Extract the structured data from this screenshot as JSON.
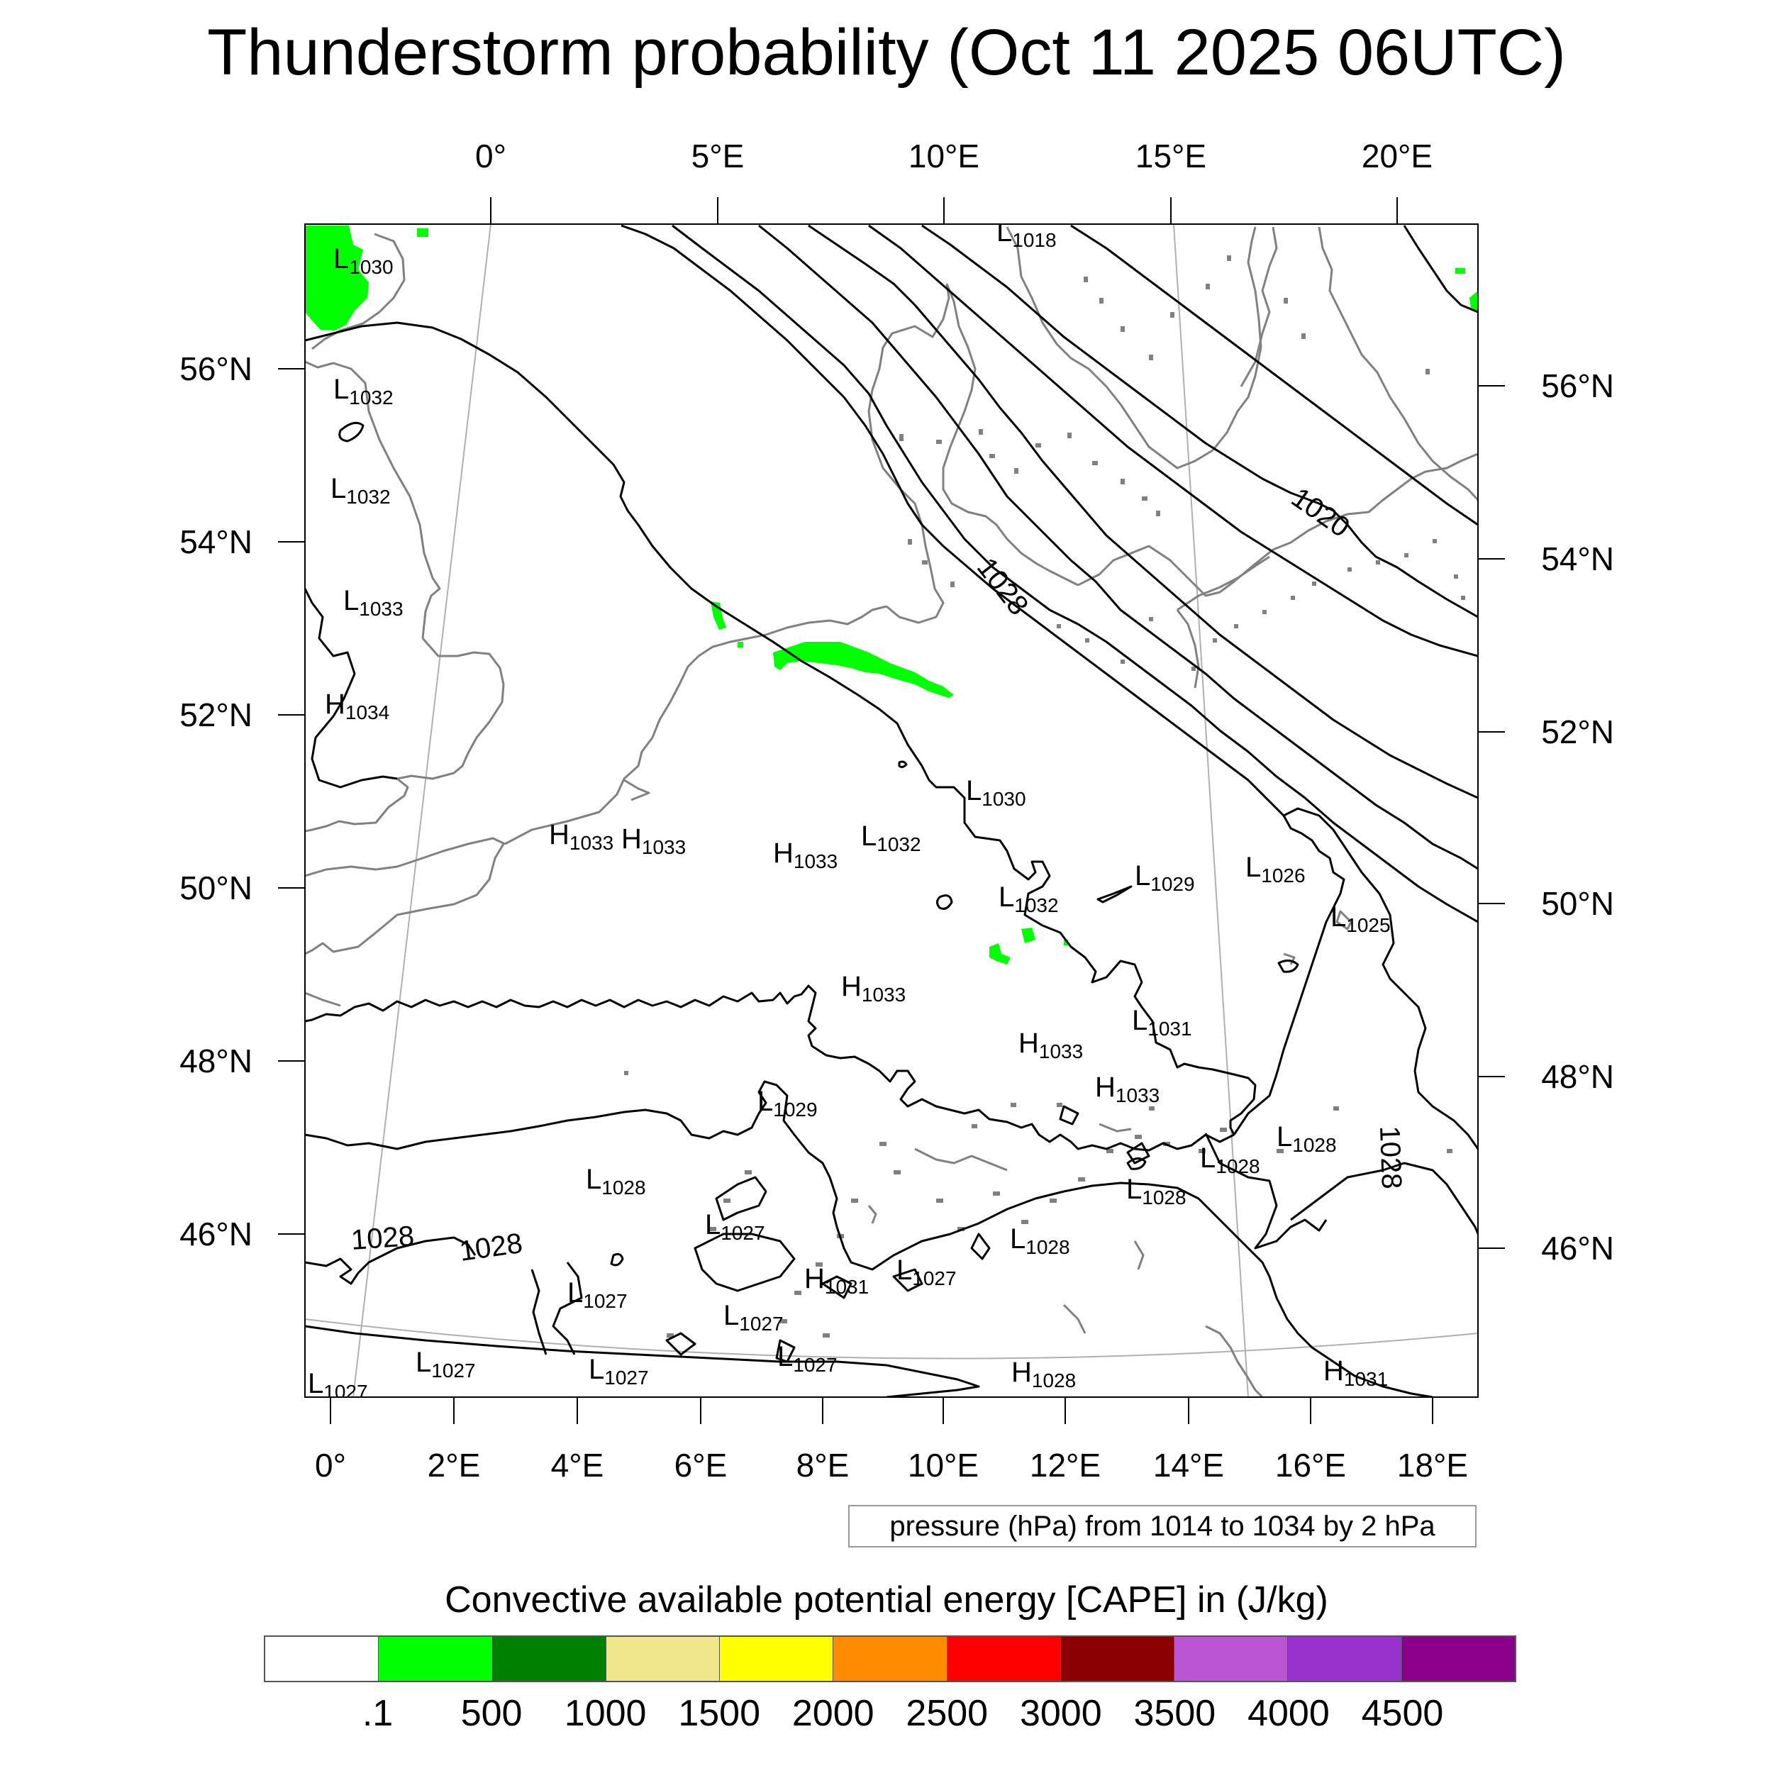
{
  "title": "Thunderstorm probability (Oct 11 2025 06UTC)",
  "map": {
    "top_lon_labels": [
      "0°",
      "5°E",
      "10°E",
      "15°E",
      "20°E"
    ],
    "bottom_lon_labels": [
      "0°",
      "2°E",
      "4°E",
      "6°E",
      "8°E",
      "10°E",
      "12°E",
      "14°E",
      "16°E",
      "18°E"
    ],
    "left_lat_labels": [
      "56°N",
      "54°N",
      "52°N",
      "50°N",
      "48°N",
      "46°N"
    ],
    "right_lat_labels": [
      "56°N",
      "54°N",
      "52°N",
      "50°N",
      "48°N",
      "46°N"
    ],
    "pressure_centers": [
      {
        "type": "L",
        "value": "1018"
      },
      {
        "type": "L",
        "value": "1030"
      },
      {
        "type": "L",
        "value": "1032"
      },
      {
        "type": "L",
        "value": "1032"
      },
      {
        "type": "L",
        "value": "1033"
      },
      {
        "type": "H",
        "value": "1034"
      },
      {
        "type": "H",
        "value": "1033"
      },
      {
        "type": "H",
        "value": "1033"
      },
      {
        "type": "H",
        "value": "1033"
      },
      {
        "type": "L",
        "value": "1032"
      },
      {
        "type": "L",
        "value": "1030"
      },
      {
        "type": "L",
        "value": "1032"
      },
      {
        "type": "L",
        "value": "1029"
      },
      {
        "type": "L",
        "value": "1026"
      },
      {
        "type": "L",
        "value": "1025"
      },
      {
        "type": "H",
        "value": "1033"
      },
      {
        "type": "L",
        "value": "1031"
      },
      {
        "type": "H",
        "value": "1033"
      },
      {
        "type": "H",
        "value": "1033"
      },
      {
        "type": "L",
        "value": "1029"
      },
      {
        "type": "L",
        "value": "1028"
      },
      {
        "type": "L",
        "value": "1028"
      },
      {
        "type": "L",
        "value": "1028"
      },
      {
        "type": "L",
        "value": "1028"
      },
      {
        "type": "L",
        "value": "1027"
      },
      {
        "type": "L",
        "value": "1028"
      },
      {
        "type": "L",
        "value": "1027"
      },
      {
        "type": "H",
        "value": "1031"
      },
      {
        "type": "L",
        "value": "1027"
      },
      {
        "type": "L",
        "value": "1027"
      },
      {
        "type": "L",
        "value": "1027"
      },
      {
        "type": "L",
        "value": "1027"
      },
      {
        "type": "L",
        "value": "1027"
      },
      {
        "type": "H",
        "value": "1028"
      },
      {
        "type": "H",
        "value": "1031"
      },
      {
        "type": "L",
        "value": "1027"
      }
    ],
    "isobar_labels": [
      "1020",
      "1028",
      "1028",
      "1028",
      "1028"
    ],
    "colors": {
      "contour": "#000000",
      "coast": "#808080",
      "cape_low": "#00ff00"
    }
  },
  "contour_info": "pressure (hPa) from 1014 to 1034 by 2 hPa",
  "colorbar": {
    "title": "Convective available potential energy [CAPE] in (J/kg)",
    "colors": [
      "#ffffff",
      "#00ff00",
      "#008000",
      "#f0e68c",
      "#ffff00",
      "#ff8c00",
      "#ff0000",
      "#8b0000",
      "#ba55d3",
      "#9932cc",
      "#8b008b"
    ],
    "labels": [
      ".1",
      "500",
      "1000",
      "1500",
      "2000",
      "2500",
      "3000",
      "3500",
      "4000",
      "4500"
    ]
  }
}
